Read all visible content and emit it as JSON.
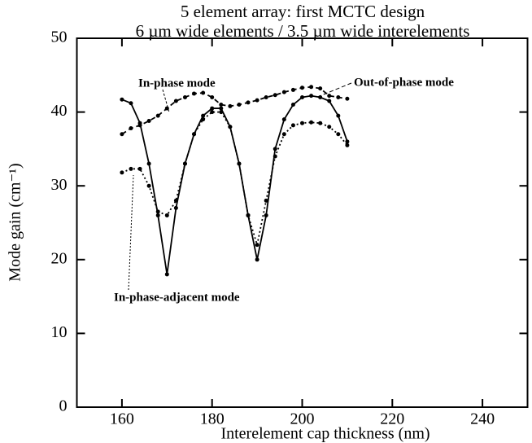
{
  "chart_data": {
    "type": "line",
    "title": "5 element array: first MCTC design",
    "subtitle": "6 µm wide elements / 3.5 µm wide interelements",
    "xlabel": "Interelement cap thickness (nm)",
    "ylabel": "Mode gain (cm⁻¹)",
    "annotations": [
      "In-phase mode",
      "Out-of-phase mode",
      "In-phase-adjacent mode"
    ],
    "x": [
      160,
      162,
      164,
      166,
      168,
      170,
      172,
      174,
      176,
      178,
      180,
      182,
      184,
      186,
      188,
      190,
      192,
      194,
      196,
      198,
      200,
      202,
      204,
      206,
      208,
      210
    ],
    "series": [
      {
        "name": "In-phase mode",
        "color": "#000000",
        "dash": "solid",
        "values": [
          41.7,
          41.2,
          38.5,
          33,
          26,
          18,
          27,
          33,
          37,
          39.5,
          40.5,
          40.5,
          38,
          33,
          26,
          20,
          26,
          35,
          39,
          41,
          42,
          42.2,
          42,
          41.5,
          39.5,
          36
        ]
      },
      {
        "name": "Out-of-phase mode",
        "color": "#000000",
        "dash": "dashed",
        "values": [
          37,
          37.8,
          38.2,
          38.8,
          39.5,
          40.5,
          41.5,
          42,
          42.5,
          42.6,
          42,
          41,
          40.8,
          41,
          41.3,
          41.6,
          42,
          42.3,
          42.7,
          43,
          43.3,
          43.4,
          43.2,
          42.2,
          42,
          41.8
        ]
      },
      {
        "name": "In-phase-adjacent mode",
        "color": "#000000",
        "dash": "dotted",
        "values": [
          31.8,
          32.3,
          32.3,
          30,
          26.5,
          26,
          28,
          33,
          37,
          39,
          40,
          40,
          38,
          33,
          26,
          22,
          28,
          34,
          37,
          38.2,
          38.5,
          38.6,
          38.5,
          38,
          37,
          35.5
        ]
      }
    ],
    "xlim": [
      150,
      250
    ],
    "xticks": [
      160,
      180,
      200,
      220,
      240
    ],
    "ylim": [
      0,
      50
    ],
    "yticks": [
      0,
      10,
      20,
      30,
      40,
      50
    ]
  }
}
